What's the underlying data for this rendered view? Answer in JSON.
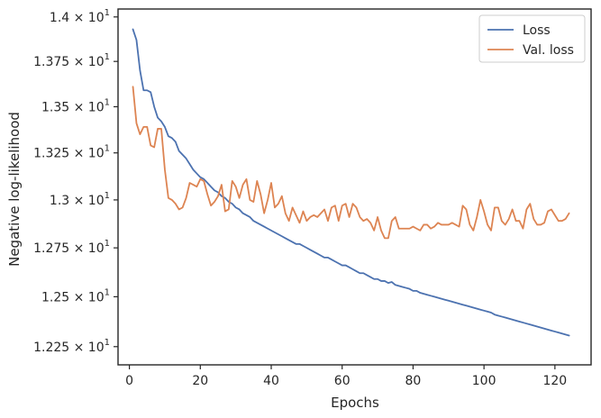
{
  "chart_data": {
    "type": "line",
    "xlabel": "Epochs",
    "ylabel": "Negative log-likelihood",
    "xlim": [
      -3.2,
      130.2
    ],
    "ylim": [
      12.16,
      14.045
    ],
    "yscale": "log",
    "grid": false,
    "legend_position": "top-right",
    "x_ticks": [
      0,
      20,
      40,
      60,
      80,
      100,
      120
    ],
    "x_tick_labels": [
      "0",
      "20",
      "40",
      "60",
      "80",
      "100",
      "120"
    ],
    "y_ticks": [
      12.25,
      12.5,
      12.75,
      13.0,
      13.25,
      13.5,
      13.75,
      14.0
    ],
    "y_tick_labels": [
      {
        "mant": "1.225",
        "exp": "1"
      },
      {
        "mant": "1.25",
        "exp": "1"
      },
      {
        "mant": "1.275",
        "exp": "1"
      },
      {
        "mant": "1.3",
        "exp": "1"
      },
      {
        "mant": "1.325",
        "exp": "1"
      },
      {
        "mant": "1.35",
        "exp": "1"
      },
      {
        "mant": "1.375",
        "exp": "1"
      },
      {
        "mant": "1.4",
        "exp": "1"
      }
    ],
    "series": [
      {
        "name": "Loss",
        "color": "#4c72b0",
        "x": [
          1,
          2,
          3,
          4,
          5,
          6,
          7,
          8,
          9,
          10,
          11,
          12,
          13,
          14,
          15,
          16,
          17,
          18,
          19,
          20,
          21,
          22,
          23,
          24,
          25,
          26,
          27,
          28,
          29,
          30,
          31,
          32,
          33,
          34,
          35,
          36,
          37,
          38,
          39,
          40,
          41,
          42,
          43,
          44,
          45,
          46,
          47,
          48,
          49,
          50,
          51,
          52,
          53,
          54,
          55,
          56,
          57,
          58,
          59,
          60,
          61,
          62,
          63,
          64,
          65,
          66,
          67,
          68,
          69,
          70,
          71,
          72,
          73,
          74,
          75,
          76,
          77,
          78,
          79,
          80,
          81,
          82,
          83,
          84,
          85,
          86,
          87,
          88,
          89,
          90,
          91,
          92,
          93,
          94,
          95,
          96,
          97,
          98,
          99,
          100,
          101,
          102,
          103,
          104,
          105,
          106,
          107,
          108,
          109,
          110,
          111,
          112,
          113,
          114,
          115,
          116,
          117,
          118,
          119,
          120,
          121,
          122,
          123,
          124
        ],
        "values": [
          13.93,
          13.87,
          13.7,
          13.59,
          13.59,
          13.58,
          13.5,
          13.44,
          13.42,
          13.39,
          13.34,
          13.33,
          13.31,
          13.26,
          13.24,
          13.22,
          13.19,
          13.16,
          13.14,
          13.12,
          13.11,
          13.09,
          13.07,
          13.05,
          13.04,
          13.02,
          13.01,
          12.99,
          12.98,
          12.96,
          12.95,
          12.93,
          12.92,
          12.91,
          12.89,
          12.88,
          12.87,
          12.86,
          12.85,
          12.84,
          12.83,
          12.82,
          12.81,
          12.8,
          12.79,
          12.78,
          12.77,
          12.77,
          12.76,
          12.75,
          12.74,
          12.73,
          12.72,
          12.71,
          12.7,
          12.7,
          12.69,
          12.68,
          12.67,
          12.66,
          12.66,
          12.65,
          12.64,
          12.63,
          12.62,
          12.62,
          12.61,
          12.6,
          12.59,
          12.59,
          12.58,
          12.58,
          12.57,
          12.575,
          12.56,
          12.555,
          12.55,
          12.545,
          12.54,
          12.53,
          12.53,
          12.52,
          12.515,
          12.51,
          12.505,
          12.5,
          12.495,
          12.49,
          12.485,
          12.48,
          12.475,
          12.47,
          12.465,
          12.46,
          12.455,
          12.45,
          12.445,
          12.44,
          12.435,
          12.43,
          12.425,
          12.42,
          12.41,
          12.405,
          12.4,
          12.395,
          12.39,
          12.385,
          12.38,
          12.375,
          12.37,
          12.365,
          12.36,
          12.355,
          12.35,
          12.345,
          12.34,
          12.335,
          12.33,
          12.325,
          12.32,
          12.315,
          12.31,
          12.305
        ],
        "label": "Loss"
      },
      {
        "name": "Val. loss",
        "color": "#dd8452",
        "x": [
          1,
          2,
          3,
          4,
          5,
          6,
          7,
          8,
          9,
          10,
          11,
          12,
          13,
          14,
          15,
          16,
          17,
          18,
          19,
          20,
          21,
          22,
          23,
          24,
          25,
          26,
          27,
          28,
          29,
          30,
          31,
          32,
          33,
          34,
          35,
          36,
          37,
          38,
          39,
          40,
          41,
          42,
          43,
          44,
          45,
          46,
          47,
          48,
          49,
          50,
          51,
          52,
          53,
          54,
          55,
          56,
          57,
          58,
          59,
          60,
          61,
          62,
          63,
          64,
          65,
          66,
          67,
          68,
          69,
          70,
          71,
          72,
          73,
          74,
          75,
          76,
          77,
          78,
          79,
          80,
          81,
          82,
          83,
          84,
          85,
          86,
          87,
          88,
          89,
          90,
          91,
          92,
          93,
          94,
          95,
          96,
          97,
          98,
          99,
          100,
          101,
          102,
          103,
          104,
          105,
          106,
          107,
          108,
          109,
          110,
          111,
          112,
          113,
          114,
          115,
          116,
          117,
          118,
          119,
          120,
          121,
          122,
          123,
          124
        ],
        "values": [
          13.61,
          13.41,
          13.35,
          13.39,
          13.39,
          13.29,
          13.28,
          13.38,
          13.38,
          13.16,
          13.01,
          13.0,
          12.98,
          12.95,
          12.96,
          13.01,
          13.09,
          13.08,
          13.07,
          13.11,
          13.1,
          13.03,
          12.97,
          12.99,
          13.02,
          13.08,
          12.94,
          12.95,
          13.1,
          13.07,
          13.01,
          13.08,
          13.11,
          13.0,
          12.99,
          13.1,
          13.03,
          12.93,
          13.0,
          13.09,
          12.96,
          12.98,
          13.02,
          12.93,
          12.89,
          12.96,
          12.92,
          12.88,
          12.94,
          12.89,
          12.91,
          12.92,
          12.91,
          12.93,
          12.95,
          12.89,
          12.96,
          12.97,
          12.89,
          12.97,
          12.98,
          12.91,
          12.98,
          12.96,
          12.91,
          12.89,
          12.9,
          12.88,
          12.84,
          12.91,
          12.84,
          12.8,
          12.8,
          12.89,
          12.91,
          12.85,
          12.85,
          12.85,
          12.85,
          12.86,
          12.85,
          12.84,
          12.87,
          12.87,
          12.85,
          12.86,
          12.88,
          12.87,
          12.87,
          12.87,
          12.88,
          12.87,
          12.86,
          12.97,
          12.95,
          12.87,
          12.84,
          12.91,
          13.0,
          12.94,
          12.87,
          12.84,
          12.96,
          12.96,
          12.89,
          12.87,
          12.9,
          12.95,
          12.89,
          12.89,
          12.85,
          12.95,
          12.98,
          12.9,
          12.87,
          12.87,
          12.88,
          12.94,
          12.95,
          12.92,
          12.89,
          12.89,
          12.9,
          12.93
        ],
        "label": "Val. loss"
      }
    ]
  }
}
